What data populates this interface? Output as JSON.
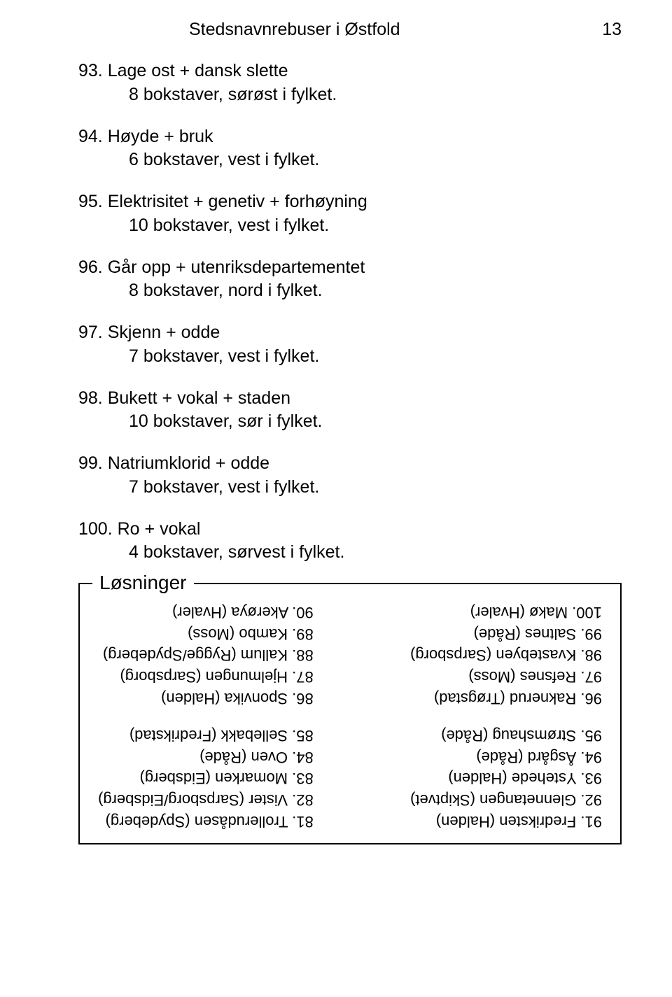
{
  "header": {
    "title": "Stedsnavnrebuser i Østfold",
    "pageNumber": "13"
  },
  "entries": [
    {
      "num": "93.",
      "clue": "Lage ost + dansk slette",
      "hint": "8 bokstaver, sørøst i fylket."
    },
    {
      "num": "94.",
      "clue": "Høyde + bruk",
      "hint": "6 bokstaver, vest i fylket."
    },
    {
      "num": "95.",
      "clue": "Elektrisitet + genetiv + forhøyning",
      "hint": "10 bokstaver, vest i fylket."
    },
    {
      "num": "96.",
      "clue": "Går opp + utenriksdepartementet",
      "hint": "8 bokstaver, nord i fylket."
    },
    {
      "num": "97.",
      "clue": "Skjenn + odde",
      "hint": "7 bokstaver, vest i fylket."
    },
    {
      "num": "98.",
      "clue": "Bukett + vokal + staden",
      "hint": "10 bokstaver, sør i fylket."
    },
    {
      "num": "99.",
      "clue": "Natriumklorid + odde",
      "hint": "7 bokstaver, vest i fylket."
    },
    {
      "num": "100.",
      "clue": "Ro + vokal",
      "hint": "4 bokstaver, sørvest i fylket."
    }
  ],
  "solutions": {
    "label": "Løsninger",
    "leftColumn": {
      "block1": [
        "91. Fredriksten (Halden)",
        "92. Glennetangen (Skiptvet)",
        "93. Ystehede (Halden)",
        "94. Åsgård (Råde)",
        "95. Strømshaug (Råde)"
      ],
      "block2": [
        "96. Raknerud (Trøgstad)",
        "97. Refsnes (Moss)",
        "98. Kvastebyen (Sarpsborg)",
        "99. Saltnes (Råde)",
        "100. Makø (Hvaler)"
      ]
    },
    "rightColumn": {
      "block1": [
        "81. Trollerudåsen (Spydeberg)",
        "82. Vister (Sarpsborg/Eidsberg)",
        "83. Momarken (Eidsberg)",
        "84. Oven (Råde)",
        "85. Sellebakk (Fredrikstad)"
      ],
      "block2": [
        "86. Sponvika (Halden)",
        "87. Hjelmungen (Sarpsborg)",
        "88. Kallum (Rygge/Spydeberg)",
        "89. Kambo (Moss)",
        "90. Akerøya (Hvaler)"
      ]
    }
  }
}
